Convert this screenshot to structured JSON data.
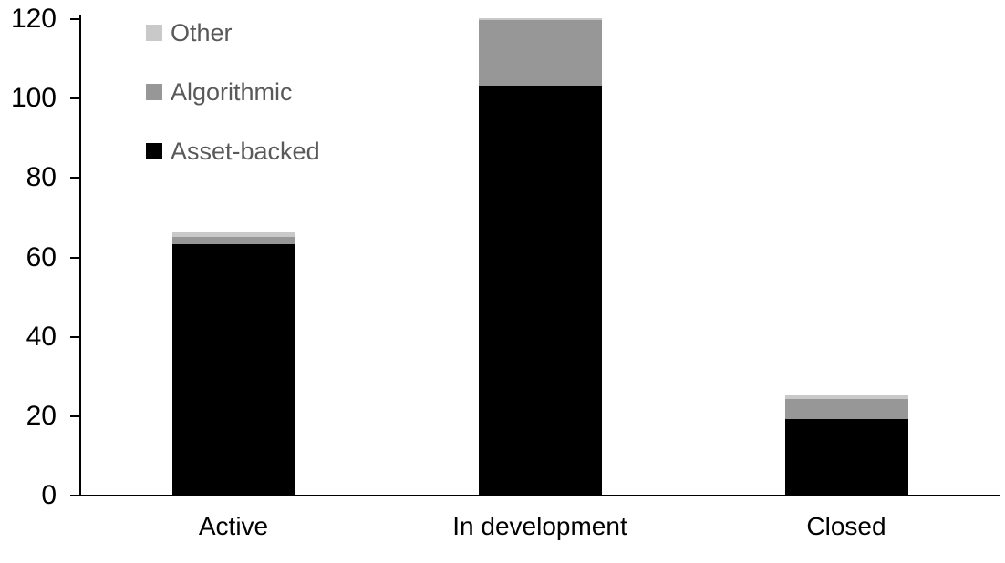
{
  "chart_data": {
    "type": "bar",
    "stacked": true,
    "categories": [
      "Active",
      "In development",
      "Closed"
    ],
    "series": [
      {
        "name": "Asset-backed",
        "color": "#000000",
        "values": [
          63,
          103,
          19
        ]
      },
      {
        "name": "Algorithmic",
        "color": "#979797",
        "values": [
          2,
          16.5,
          5
        ]
      },
      {
        "name": "Other",
        "color": "#c9c9c9",
        "values": [
          1,
          0.5,
          1
        ]
      }
    ],
    "ylim": [
      0,
      120
    ],
    "yticks": [
      0,
      20,
      40,
      60,
      80,
      100,
      120
    ],
    "grid": false,
    "background_color": "#ffffff",
    "axis_color": "#000000",
    "legend": {
      "position": "top-left",
      "order": [
        "Other",
        "Algorithmic",
        "Asset-backed"
      ],
      "text_color": "#595959"
    }
  }
}
